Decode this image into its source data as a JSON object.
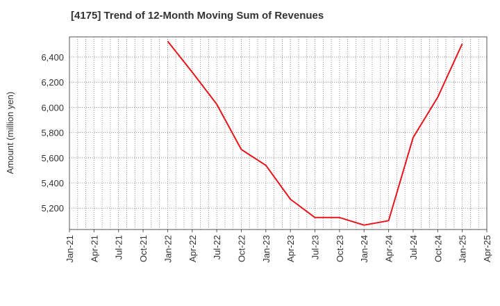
{
  "chart_data": {
    "type": "line",
    "title": "[4175]  Trend of 12-Month Moving Sum of Revenues",
    "xlabel": "",
    "ylabel": "Amount (million yen)",
    "x_ticks": [
      "Jan-21",
      "Apr-21",
      "Jul-21",
      "Oct-21",
      "Jan-22",
      "Apr-22",
      "Jul-22",
      "Oct-22",
      "Jan-23",
      "Apr-23",
      "Jul-23",
      "Oct-23",
      "Jan-24",
      "Apr-24",
      "Jul-24",
      "Oct-24",
      "Jan-25",
      "Apr-25"
    ],
    "y_ticks": [
      5200,
      5400,
      5600,
      5800,
      6000,
      6200,
      6400
    ],
    "y_tick_labels": [
      "5,200",
      "5,400",
      "5,600",
      "5,800",
      "6,000",
      "6,200",
      "6,400"
    ],
    "xlim": [
      "Jan-21",
      "Apr-25"
    ],
    "ylim": [
      5030,
      6560
    ],
    "grid": true,
    "series": [
      {
        "color": "#e8141b",
        "x": [
          "Jan-22",
          "Apr-22",
          "Jul-22",
          "Oct-22",
          "Jan-23",
          "Apr-23",
          "Jul-23",
          "Oct-23",
          "Jan-24",
          "Apr-24",
          "Jul-24",
          "Oct-24",
          "Jan-25"
        ],
        "values": [
          6525,
          6280,
          6025,
          5665,
          5540,
          5270,
          5125,
          5125,
          5065,
          5100,
          5760,
          6080,
          6505
        ]
      }
    ]
  }
}
